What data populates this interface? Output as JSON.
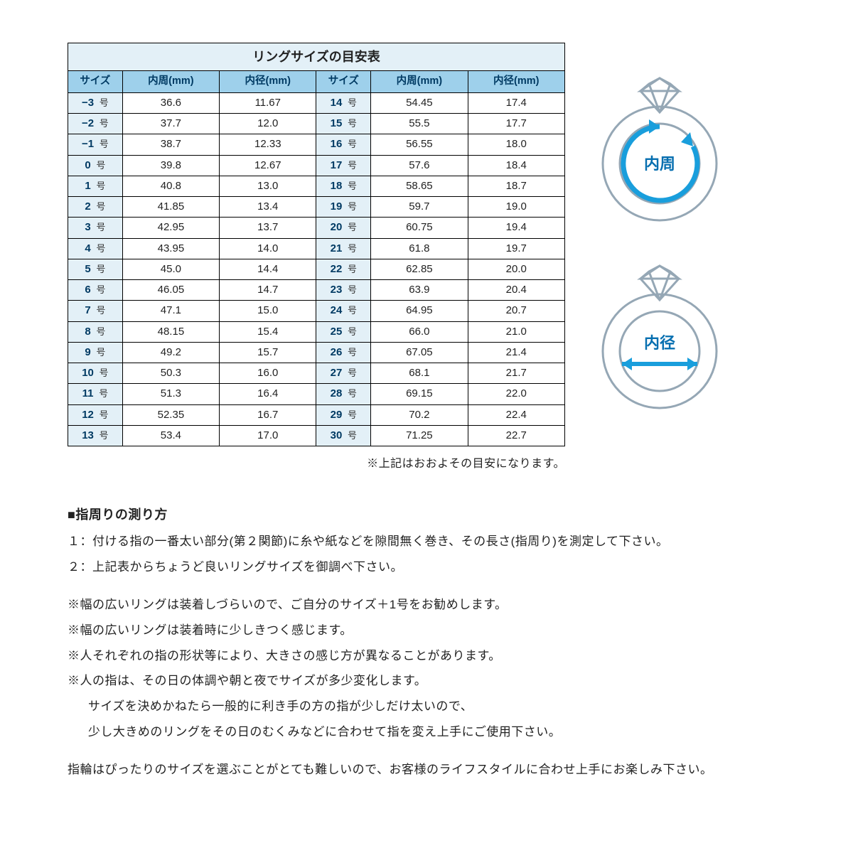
{
  "table": {
    "title": "リングサイズの目安表",
    "columns": [
      "サイズ",
      "内周(mm)",
      "内径(mm)",
      "サイズ",
      "内周(mm)",
      "内径(mm)"
    ],
    "size_suffix": "号",
    "rows": [
      {
        "s1": "−3",
        "c1": "36.6",
        "d1": "11.67",
        "s2": "14",
        "c2": "54.45",
        "d2": "17.4"
      },
      {
        "s1": "−2",
        "c1": "37.7",
        "d1": "12.0",
        "s2": "15",
        "c2": "55.5",
        "d2": "17.7"
      },
      {
        "s1": "−1",
        "c1": "38.7",
        "d1": "12.33",
        "s2": "16",
        "c2": "56.55",
        "d2": "18.0"
      },
      {
        "s1": "0",
        "c1": "39.8",
        "d1": "12.67",
        "s2": "17",
        "c2": "57.6",
        "d2": "18.4"
      },
      {
        "s1": "1",
        "c1": "40.8",
        "d1": "13.0",
        "s2": "18",
        "c2": "58.65",
        "d2": "18.7"
      },
      {
        "s1": "2",
        "c1": "41.85",
        "d1": "13.4",
        "s2": "19",
        "c2": "59.7",
        "d2": "19.0"
      },
      {
        "s1": "3",
        "c1": "42.95",
        "d1": "13.7",
        "s2": "20",
        "c2": "60.75",
        "d2": "19.4"
      },
      {
        "s1": "4",
        "c1": "43.95",
        "d1": "14.0",
        "s2": "21",
        "c2": "61.8",
        "d2": "19.7"
      },
      {
        "s1": "5",
        "c1": "45.0",
        "d1": "14.4",
        "s2": "22",
        "c2": "62.85",
        "d2": "20.0"
      },
      {
        "s1": "6",
        "c1": "46.05",
        "d1": "14.7",
        "s2": "23",
        "c2": "63.9",
        "d2": "20.4"
      },
      {
        "s1": "7",
        "c1": "47.1",
        "d1": "15.0",
        "s2": "24",
        "c2": "64.95",
        "d2": "20.7"
      },
      {
        "s1": "8",
        "c1": "48.15",
        "d1": "15.4",
        "s2": "25",
        "c2": "66.0",
        "d2": "21.0"
      },
      {
        "s1": "9",
        "c1": "49.2",
        "d1": "15.7",
        "s2": "26",
        "c2": "67.05",
        "d2": "21.4"
      },
      {
        "s1": "10",
        "c1": "50.3",
        "d1": "16.0",
        "s2": "27",
        "c2": "68.1",
        "d2": "21.7"
      },
      {
        "s1": "11",
        "c1": "51.3",
        "d1": "16.4",
        "s2": "28",
        "c2": "69.15",
        "d2": "22.0"
      },
      {
        "s1": "12",
        "c1": "52.35",
        "d1": "16.7",
        "s2": "29",
        "c2": "70.2",
        "d2": "22.4"
      },
      {
        "s1": "13",
        "c1": "53.4",
        "d1": "17.0",
        "s2": "30",
        "c2": "71.25",
        "d2": "22.7"
      }
    ],
    "note_under": "※上記はおおよその目安になります。"
  },
  "diagrams": {
    "circumference_label": "内周",
    "diameter_label": "内径",
    "outline_color": "#95a7b5",
    "accent_color": "#199edc",
    "label_color": "#066fb0"
  },
  "text": {
    "sec_title": "■指周りの測り方",
    "line1": "１：付ける指の一番太い部分(第２関節)に糸や紙などを隙間無く巻き、その長さ(指周り)を測定して下さい。",
    "line2": "２：上記表からちょうど良いリングサイズを御調べ下さい。",
    "note1": "※幅の広いリングは装着しづらいので、ご自分のサイズ＋1号をお勧めします。",
    "note2": "※幅の広いリングは装着時に少しきつく感じます。",
    "note3": "※人それぞれの指の形状等により、大きさの感じ方が異なることがあります。",
    "note4": "※人の指は、その日の体調や朝と夜でサイズが多少変化します。",
    "note4a": "サイズを決めかねたら一般的に利き手の方の指が少しだけ太いので、",
    "note4b": "少し大きめのリングをその日のむくみなどに合わせて指を変え上手にご使用下さい。",
    "closing": "指輪はぴったりのサイズを選ぶことがとても難しいので、お客様のライフスタイルに合わせ上手にお楽しみ下さい。"
  },
  "styling": {
    "page_bg": "#ffffff",
    "header_cell_bg": "#9ed0eb",
    "title_cell_bg": "#e3f0f7",
    "size_cell_bg": "#e3f0f7",
    "border_color": "#000000",
    "text_color": "#222222",
    "header_text_color": "#003a63"
  }
}
